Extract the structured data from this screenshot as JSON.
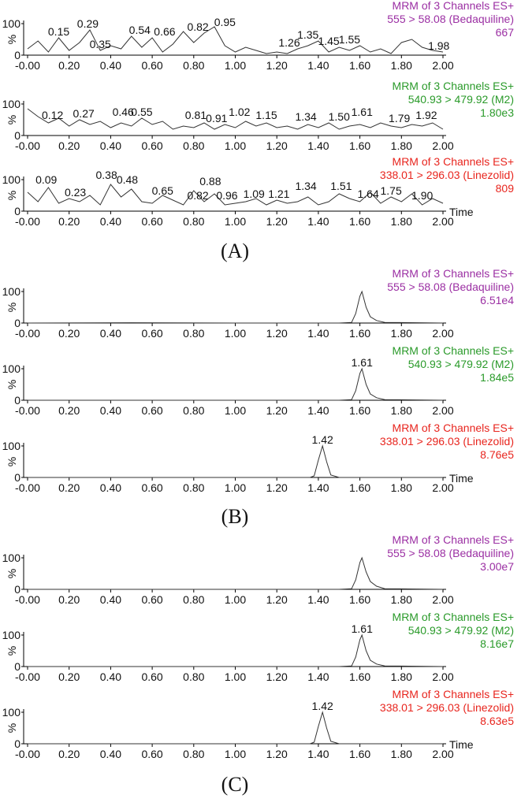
{
  "panel_labels": [
    "(A)",
    "(B)",
    "(C)"
  ],
  "chart_data": [
    {
      "type": "line",
      "header": [
        "MRM of 3 Channels ES+",
        "555 > 58.08 (Bedaquiline)",
        "667"
      ],
      "color": "#9b2fa3",
      "x": [
        0,
        0.05,
        0.1,
        0.15,
        0.2,
        0.25,
        0.3,
        0.35,
        0.4,
        0.45,
        0.5,
        0.55,
        0.6,
        0.65,
        0.7,
        0.75,
        0.8,
        0.85,
        0.9,
        0.95,
        1,
        1.05,
        1.1,
        1.15,
        1.2,
        1.25,
        1.3,
        1.35,
        1.4,
        1.45,
        1.5,
        1.55,
        1.6,
        1.65,
        1.7,
        1.75,
        1.8,
        1.85,
        1.9,
        1.95,
        2
      ],
      "values": [
        20,
        45,
        10,
        55,
        15,
        40,
        80,
        15,
        30,
        20,
        60,
        25,
        55,
        10,
        35,
        75,
        40,
        70,
        90,
        30,
        10,
        25,
        15,
        5,
        10,
        5,
        20,
        30,
        45,
        10,
        25,
        15,
        30,
        10,
        20,
        5,
        40,
        50,
        25,
        15,
        10
      ],
      "xlim": [
        0,
        2
      ],
      "xticks": [
        {
          "value": 0,
          "label": "-0.00"
        },
        {
          "value": 0.2,
          "label": "0.20"
        },
        {
          "value": 0.4,
          "label": "0.40"
        },
        {
          "value": 0.6,
          "label": "0.60"
        },
        {
          "value": 0.8,
          "label": "0.80"
        },
        {
          "value": 1,
          "label": "1.00"
        },
        {
          "value": 1.2,
          "label": "1.20"
        },
        {
          "value": 1.4,
          "label": "1.40"
        },
        {
          "value": 1.6,
          "label": "1.60"
        },
        {
          "value": 1.8,
          "label": "1.80"
        },
        {
          "value": 2,
          "label": "2.00"
        }
      ],
      "ylim": [
        0,
        100
      ],
      "yticks": [
        0,
        100
      ],
      "ylabel": "%",
      "annotations": [
        {
          "label": "0.15",
          "x": 0.15,
          "y": 55
        },
        {
          "label": "0.29",
          "x": 0.29,
          "y": 80
        },
        {
          "label": "0.35",
          "x": 0.35,
          "y": 15
        },
        {
          "label": "0.54",
          "x": 0.54,
          "y": 60
        },
        {
          "label": "0.66",
          "x": 0.66,
          "y": 55
        },
        {
          "label": "0.82",
          "x": 0.82,
          "y": 70
        },
        {
          "label": "0.95",
          "x": 0.95,
          "y": 85
        },
        {
          "label": "1.26",
          "x": 1.26,
          "y": 20
        },
        {
          "label": "1.35",
          "x": 1.35,
          "y": 45
        },
        {
          "label": "1.45",
          "x": 1.45,
          "y": 25
        },
        {
          "label": "1.55",
          "x": 1.55,
          "y": 30
        },
        {
          "label": "1.98",
          "x": 1.98,
          "y": 10
        }
      ]
    },
    {
      "type": "line",
      "header": [
        "MRM of 3 Channels ES+",
        "540.93 > 479.92 (M2)",
        "1.80e3"
      ],
      "color": "#2a9a2a",
      "x": [
        0,
        0.05,
        0.1,
        0.15,
        0.2,
        0.25,
        0.3,
        0.35,
        0.4,
        0.45,
        0.5,
        0.55,
        0.6,
        0.65,
        0.7,
        0.75,
        0.8,
        0.85,
        0.9,
        0.95,
        1,
        1.05,
        1.1,
        1.15,
        1.2,
        1.25,
        1.3,
        1.35,
        1.4,
        1.45,
        1.5,
        1.55,
        1.6,
        1.65,
        1.7,
        1.75,
        1.8,
        1.85,
        1.9,
        1.95,
        2
      ],
      "values": [
        85,
        60,
        40,
        55,
        30,
        50,
        35,
        45,
        25,
        40,
        30,
        55,
        35,
        45,
        20,
        30,
        25,
        40,
        20,
        35,
        25,
        45,
        30,
        40,
        25,
        30,
        20,
        35,
        25,
        40,
        20,
        30,
        35,
        25,
        40,
        30,
        25,
        35,
        30,
        40,
        20
      ],
      "xlim": [
        0,
        2
      ],
      "xticks": [
        {
          "value": 0,
          "label": "-0.00"
        },
        {
          "value": 0.2,
          "label": "0.20"
        },
        {
          "value": 0.4,
          "label": "0.40"
        },
        {
          "value": 0.6,
          "label": "0.60"
        },
        {
          "value": 0.8,
          "label": "0.80"
        },
        {
          "value": 1,
          "label": "1.00"
        },
        {
          "value": 1.2,
          "label": "1.20"
        },
        {
          "value": 1.4,
          "label": "1.40"
        },
        {
          "value": 1.6,
          "label": "1.60"
        },
        {
          "value": 1.8,
          "label": "1.80"
        },
        {
          "value": 2,
          "label": "2.00"
        }
      ],
      "ylim": [
        0,
        100
      ],
      "yticks": [
        0,
        100
      ],
      "ylabel": "%",
      "annotations": [
        {
          "label": "0.12",
          "x": 0.12,
          "y": 45
        },
        {
          "label": "0.27",
          "x": 0.27,
          "y": 50
        },
        {
          "label": "0.46",
          "x": 0.46,
          "y": 55
        },
        {
          "label": "0.55",
          "x": 0.55,
          "y": 55
        },
        {
          "label": "0.81",
          "x": 0.81,
          "y": 45
        },
        {
          "label": "0.91",
          "x": 0.91,
          "y": 35
        },
        {
          "label": "1.02",
          "x": 1.02,
          "y": 55
        },
        {
          "label": "1.15",
          "x": 1.15,
          "y": 45
        },
        {
          "label": "1.34",
          "x": 1.34,
          "y": 40
        },
        {
          "label": "1.50",
          "x": 1.5,
          "y": 40
        },
        {
          "label": "1.61",
          "x": 1.61,
          "y": 55
        },
        {
          "label": "1.79",
          "x": 1.79,
          "y": 35
        },
        {
          "label": "1.92",
          "x": 1.92,
          "y": 45
        }
      ]
    },
    {
      "type": "line",
      "header": [
        "MRM of 3 Channels ES+",
        "338.01 > 296.03 (Linezolid)",
        "809"
      ],
      "color": "#e8251e",
      "x": [
        0,
        0.05,
        0.1,
        0.15,
        0.2,
        0.25,
        0.3,
        0.35,
        0.4,
        0.45,
        0.5,
        0.55,
        0.6,
        0.65,
        0.7,
        0.75,
        0.8,
        0.85,
        0.9,
        0.95,
        1,
        1.05,
        1.1,
        1.15,
        1.2,
        1.25,
        1.3,
        1.35,
        1.4,
        1.45,
        1.5,
        1.55,
        1.6,
        1.65,
        1.7,
        1.75,
        1.8,
        1.85,
        1.9,
        1.95,
        2
      ],
      "values": [
        60,
        30,
        75,
        25,
        40,
        30,
        50,
        20,
        85,
        45,
        70,
        30,
        25,
        50,
        35,
        20,
        65,
        30,
        55,
        20,
        25,
        30,
        40,
        20,
        35,
        25,
        30,
        45,
        20,
        30,
        55,
        40,
        30,
        60,
        25,
        45,
        30,
        55,
        20,
        40,
        25
      ],
      "xlim": [
        0,
        2
      ],
      "xticks": [
        {
          "value": 0,
          "label": "-0.00"
        },
        {
          "value": 0.2,
          "label": "0.20"
        },
        {
          "value": 0.4,
          "label": "0.40"
        },
        {
          "value": 0.6,
          "label": "0.60"
        },
        {
          "value": 0.8,
          "label": "0.80"
        },
        {
          "value": 1,
          "label": "1.00"
        },
        {
          "value": 1.2,
          "label": "1.20"
        },
        {
          "value": 1.4,
          "label": "1.40"
        },
        {
          "value": 1.6,
          "label": "1.60"
        },
        {
          "value": 1.8,
          "label": "1.80"
        },
        {
          "value": 2,
          "label": "2.00"
        }
      ],
      "ylim": [
        0,
        100
      ],
      "yticks": [
        0,
        100
      ],
      "ylabel": "%",
      "xlabel": "Time",
      "annotations": [
        {
          "label": "0.09",
          "x": 0.09,
          "y": 80
        },
        {
          "label": "0.23",
          "x": 0.23,
          "y": 40
        },
        {
          "label": "0.38",
          "x": 0.38,
          "y": 95
        },
        {
          "label": "0.48",
          "x": 0.48,
          "y": 80
        },
        {
          "label": "0.65",
          "x": 0.65,
          "y": 45
        },
        {
          "label": "0.82",
          "x": 0.82,
          "y": 30
        },
        {
          "label": "0.88",
          "x": 0.88,
          "y": 75
        },
        {
          "label": "0.96",
          "x": 0.96,
          "y": 30
        },
        {
          "label": "1.09",
          "x": 1.09,
          "y": 35
        },
        {
          "label": "1.21",
          "x": 1.21,
          "y": 35
        },
        {
          "label": "1.34",
          "x": 1.34,
          "y": 60
        },
        {
          "label": "1.51",
          "x": 1.51,
          "y": 60
        },
        {
          "label": "1.64",
          "x": 1.64,
          "y": 35
        },
        {
          "label": "1.75",
          "x": 1.75,
          "y": 45
        },
        {
          "label": "1.90",
          "x": 1.9,
          "y": 30
        }
      ]
    },
    {
      "type": "line",
      "header": [
        "MRM of 3 Channels ES+",
        "555 > 58.08 (Bedaquiline)",
        "6.51e4"
      ],
      "color": "#9b2fa3",
      "x": [
        0,
        0.5,
        1,
        1.5,
        1.56,
        1.58,
        1.6,
        1.61,
        1.63,
        1.65,
        1.68,
        1.72,
        2
      ],
      "values": [
        0,
        1,
        0,
        0,
        2,
        30,
        85,
        100,
        50,
        20,
        8,
        2,
        0
      ],
      "xlim": [
        0,
        2
      ],
      "xticks": [
        {
          "value": 0,
          "label": "-0.00"
        },
        {
          "value": 0.2,
          "label": "0.20"
        },
        {
          "value": 0.4,
          "label": "0.40"
        },
        {
          "value": 0.6,
          "label": "0.60"
        },
        {
          "value": 0.8,
          "label": "0.80"
        },
        {
          "value": 1,
          "label": "1.00"
        },
        {
          "value": 1.2,
          "label": "1.20"
        },
        {
          "value": 1.4,
          "label": "1.40"
        },
        {
          "value": 1.6,
          "label": "1.60"
        },
        {
          "value": 1.8,
          "label": "1.80"
        },
        {
          "value": 2,
          "label": "2.00"
        }
      ],
      "ylim": [
        0,
        100
      ],
      "yticks": [
        0,
        100
      ],
      "ylabel": "%",
      "annotations": []
    },
    {
      "type": "line",
      "header": [
        "MRM of 3 Channels ES+",
        "540.93 > 479.92 (M2)",
        "1.84e5"
      ],
      "color": "#2a9a2a",
      "x": [
        0,
        0.5,
        1,
        1.5,
        1.56,
        1.58,
        1.6,
        1.61,
        1.63,
        1.65,
        1.68,
        1.72,
        2
      ],
      "values": [
        0,
        0,
        0,
        0,
        2,
        30,
        85,
        100,
        50,
        20,
        8,
        2,
        0
      ],
      "xlim": [
        0,
        2
      ],
      "xticks": [
        {
          "value": 0,
          "label": "-0.00"
        },
        {
          "value": 0.2,
          "label": "0.20"
        },
        {
          "value": 0.4,
          "label": "0.40"
        },
        {
          "value": 0.6,
          "label": "0.60"
        },
        {
          "value": 0.8,
          "label": "0.80"
        },
        {
          "value": 1,
          "label": "1.00"
        },
        {
          "value": 1.2,
          "label": "1.20"
        },
        {
          "value": 1.4,
          "label": "1.40"
        },
        {
          "value": 1.6,
          "label": "1.60"
        },
        {
          "value": 1.8,
          "label": "1.80"
        },
        {
          "value": 2,
          "label": "2.00"
        }
      ],
      "ylim": [
        0,
        100
      ],
      "yticks": [
        0,
        100
      ],
      "ylabel": "%",
      "annotations": [
        {
          "label": "1.61",
          "x": 1.61,
          "y": 100
        }
      ]
    },
    {
      "type": "line",
      "header": [
        "MRM of 3 Channels ES+",
        "338.01 > 296.03 (Linezolid)",
        "8.76e5"
      ],
      "color": "#e8251e",
      "x": [
        0,
        0.5,
        1,
        1.36,
        1.38,
        1.4,
        1.42,
        1.44,
        1.46,
        1.5,
        2
      ],
      "values": [
        0,
        0,
        0,
        0,
        5,
        55,
        100,
        50,
        8,
        0,
        0
      ],
      "xlim": [
        0,
        2
      ],
      "xticks": [
        {
          "value": 0,
          "label": "-0.00"
        },
        {
          "value": 0.2,
          "label": "0.20"
        },
        {
          "value": 0.4,
          "label": "0.40"
        },
        {
          "value": 0.6,
          "label": "0.60"
        },
        {
          "value": 0.8,
          "label": "0.80"
        },
        {
          "value": 1,
          "label": "1.00"
        },
        {
          "value": 1.2,
          "label": "1.20"
        },
        {
          "value": 1.4,
          "label": "1.40"
        },
        {
          "value": 1.6,
          "label": "1.60"
        },
        {
          "value": 1.8,
          "label": "1.80"
        },
        {
          "value": 2,
          "label": "2.00"
        }
      ],
      "ylim": [
        0,
        100
      ],
      "yticks": [
        0,
        100
      ],
      "ylabel": "%",
      "xlabel": "Time",
      "annotations": [
        {
          "label": "1.42",
          "x": 1.42,
          "y": 100
        }
      ]
    },
    {
      "type": "line",
      "header": [
        "MRM of 3 Channels ES+",
        "555 > 58.08 (Bedaquiline)",
        "3.00e7"
      ],
      "color": "#9b2fa3",
      "x": [
        0,
        0.5,
        1,
        1.5,
        1.56,
        1.58,
        1.6,
        1.61,
        1.63,
        1.65,
        1.68,
        1.72,
        2
      ],
      "values": [
        0,
        0,
        0,
        0,
        2,
        30,
        85,
        100,
        55,
        25,
        10,
        2,
        0
      ],
      "xlim": [
        0,
        2
      ],
      "xticks": [
        {
          "value": 0,
          "label": "-0.00"
        },
        {
          "value": 0.2,
          "label": "0.20"
        },
        {
          "value": 0.4,
          "label": "0.40"
        },
        {
          "value": 0.6,
          "label": "0.60"
        },
        {
          "value": 0.8,
          "label": "0.80"
        },
        {
          "value": 1,
          "label": "1.00"
        },
        {
          "value": 1.2,
          "label": "1.20"
        },
        {
          "value": 1.4,
          "label": "1.40"
        },
        {
          "value": 1.6,
          "label": "1.60"
        },
        {
          "value": 1.8,
          "label": "1.80"
        },
        {
          "value": 2,
          "label": "2.00"
        }
      ],
      "ylim": [
        0,
        100
      ],
      "yticks": [
        0,
        100
      ],
      "ylabel": "%",
      "annotations": []
    },
    {
      "type": "line",
      "header": [
        "MRM of 3 Channels ES+",
        "540.93 > 479.92 (M2)",
        "8.16e7"
      ],
      "color": "#2a9a2a",
      "x": [
        0,
        0.5,
        1,
        1.5,
        1.56,
        1.58,
        1.6,
        1.61,
        1.63,
        1.65,
        1.68,
        1.72,
        2
      ],
      "values": [
        0,
        0,
        0,
        0,
        2,
        30,
        85,
        100,
        50,
        20,
        8,
        2,
        0
      ],
      "xlim": [
        0,
        2
      ],
      "xticks": [
        {
          "value": 0,
          "label": "-0.00"
        },
        {
          "value": 0.2,
          "label": "0.20"
        },
        {
          "value": 0.4,
          "label": "0.40"
        },
        {
          "value": 0.6,
          "label": "0.60"
        },
        {
          "value": 0.8,
          "label": "0.80"
        },
        {
          "value": 1,
          "label": "1.00"
        },
        {
          "value": 1.2,
          "label": "1.20"
        },
        {
          "value": 1.4,
          "label": "1.40"
        },
        {
          "value": 1.6,
          "label": "1.60"
        },
        {
          "value": 1.8,
          "label": "1.80"
        },
        {
          "value": 2,
          "label": "2.00"
        }
      ],
      "ylim": [
        0,
        100
      ],
      "yticks": [
        0,
        100
      ],
      "ylabel": "%",
      "annotations": [
        {
          "label": "1.61",
          "x": 1.61,
          "y": 100
        }
      ]
    },
    {
      "type": "line",
      "header": [
        "MRM of 3 Channels ES+",
        "338.01 > 296.03 (Linezolid)",
        "8.63e5"
      ],
      "color": "#e8251e",
      "x": [
        0,
        0.5,
        1,
        1.36,
        1.38,
        1.4,
        1.42,
        1.44,
        1.46,
        1.5,
        2
      ],
      "values": [
        0,
        0,
        0,
        0,
        5,
        55,
        100,
        50,
        8,
        0,
        0
      ],
      "xlim": [
        0,
        2
      ],
      "xticks": [
        {
          "value": 0,
          "label": "-0.00"
        },
        {
          "value": 0.2,
          "label": "0.20"
        },
        {
          "value": 0.4,
          "label": "0.40"
        },
        {
          "value": 0.6,
          "label": "0.60"
        },
        {
          "value": 0.8,
          "label": "0.80"
        },
        {
          "value": 1,
          "label": "1.00"
        },
        {
          "value": 1.2,
          "label": "1.20"
        },
        {
          "value": 1.4,
          "label": "1.40"
        },
        {
          "value": 1.6,
          "label": "1.60"
        },
        {
          "value": 1.8,
          "label": "1.80"
        },
        {
          "value": 2,
          "label": "2.00"
        }
      ],
      "ylim": [
        0,
        100
      ],
      "yticks": [
        0,
        100
      ],
      "ylabel": "%",
      "xlabel": "Time",
      "annotations": [
        {
          "label": "1.42",
          "x": 1.42,
          "y": 100
        }
      ]
    }
  ]
}
